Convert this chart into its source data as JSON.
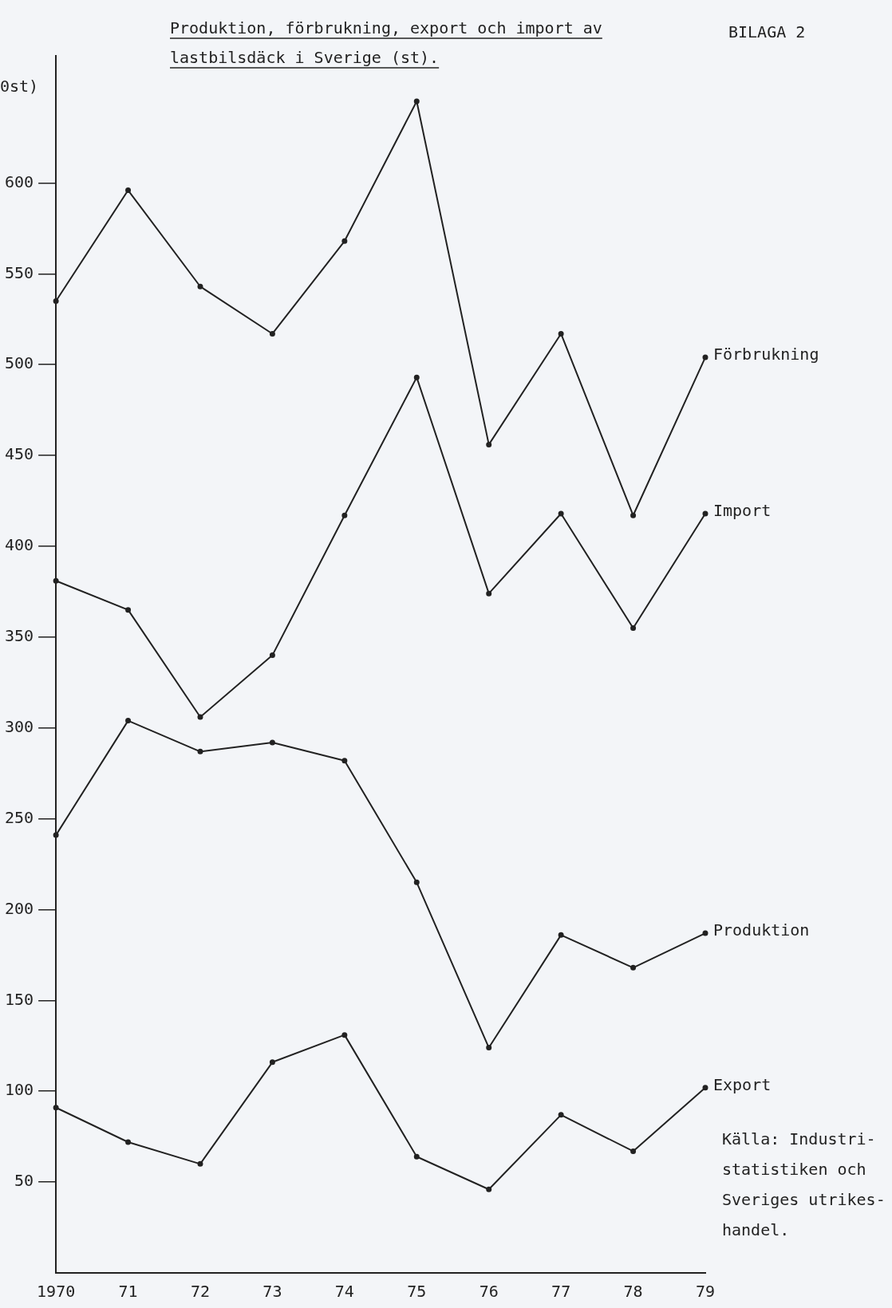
{
  "chart_data": {
    "type": "line",
    "title": "Produktion, förbrukning, export och import av lastbilsdäck i Sverige (st).",
    "ylabel": "0st)",
    "categories": [
      "1970",
      "71",
      "72",
      "73",
      "74",
      "75",
      "76",
      "77",
      "78",
      "79"
    ],
    "series": [
      {
        "name": "Förbrukning",
        "color": "#222222",
        "values": [
          535,
          596,
          543,
          517,
          568,
          645,
          456,
          517,
          417,
          504
        ]
      },
      {
        "name": "Import",
        "color": "#222222",
        "values": [
          381,
          365,
          306,
          340,
          417,
          493,
          374,
          418,
          355,
          418
        ]
      },
      {
        "name": "Produktion",
        "color": "#222222",
        "values": [
          241,
          304,
          287,
          292,
          282,
          215,
          124,
          186,
          168,
          187
        ]
      },
      {
        "name": "Export",
        "color": "#222222",
        "values": [
          91,
          72,
          60,
          116,
          131,
          64,
          46,
          87,
          67,
          102
        ]
      }
    ],
    "ylim": [
      0,
      670
    ],
    "yticks": [
      50,
      100,
      150,
      200,
      250,
      300,
      350,
      400,
      450,
      500,
      550,
      600
    ],
    "grid": false,
    "legend": false,
    "marker": "circle",
    "line_style": "solid",
    "annotations": [
      "BILAGA 2",
      "Källa: Industri-\nstatistiken och\nSveriges utrikes-\nhandel."
    ]
  }
}
